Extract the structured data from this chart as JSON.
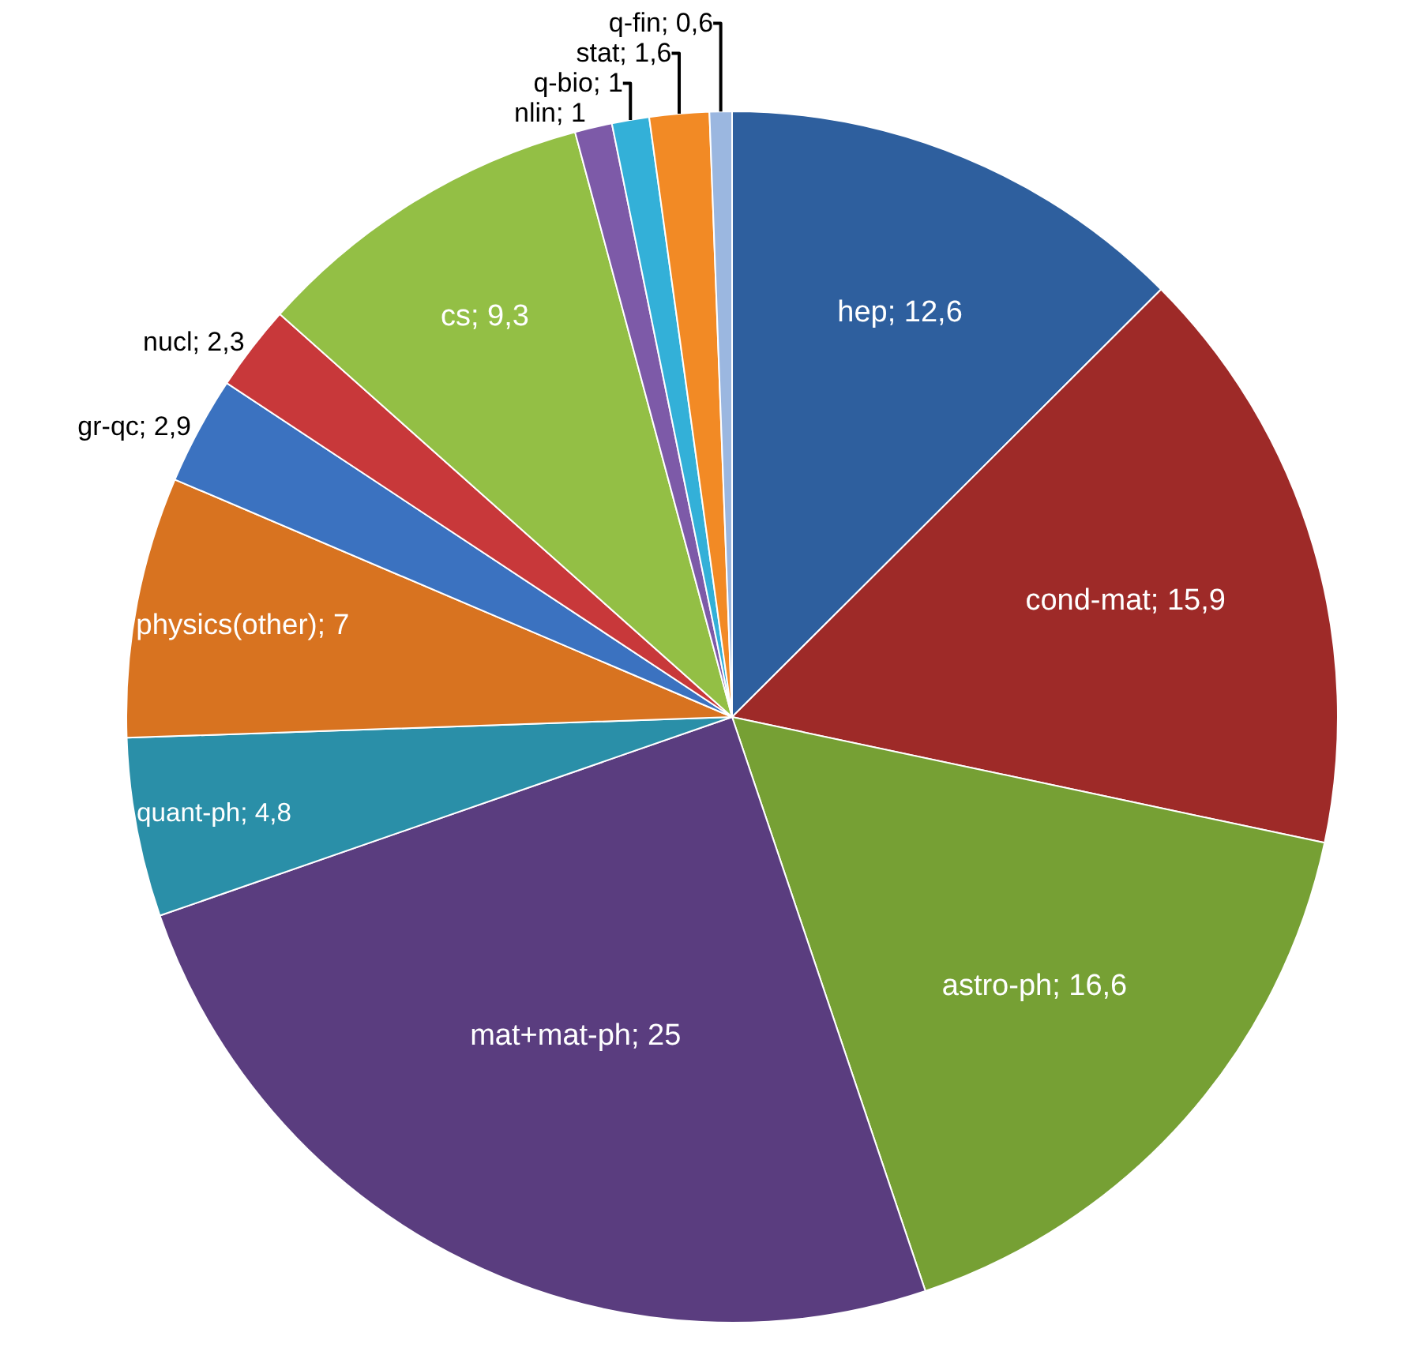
{
  "chart_data": {
    "type": "pie",
    "categories": [
      "hep",
      "cond-mat",
      "astro-ph",
      "mat+mat-ph",
      "quant-ph",
      "physics(other)",
      "gr-qc",
      "nucl",
      "cs",
      "nlin",
      "q-bio",
      "stat",
      "q-fin"
    ],
    "values": [
      12.6,
      15.9,
      16.6,
      25,
      4.8,
      7,
      2.9,
      2.3,
      9.3,
      1,
      1,
      1.6,
      0.6
    ],
    "colors": [
      "#2e5f9e",
      "#9e2a28",
      "#76a034",
      "#5a3d7f",
      "#2a8fa8",
      "#d87320",
      "#3b72c0",
      "#c8383a",
      "#93bf45",
      "#7d5aa8",
      "#33b0d8",
      "#f28a25",
      "#9bb7e0"
    ],
    "value_labels": [
      "12,6",
      "15,9",
      "16,6",
      "25",
      "4,8",
      "7",
      "2,9",
      "2,3",
      "9,3",
      "1",
      "1",
      "1,6",
      "0,6"
    ],
    "legend": false
  }
}
